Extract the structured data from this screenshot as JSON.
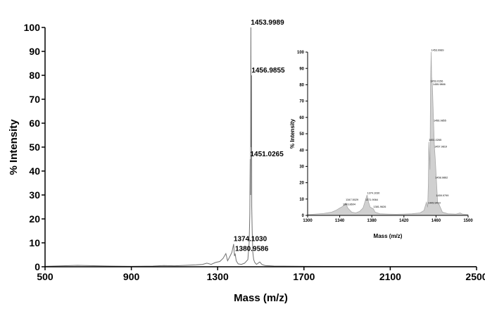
{
  "chart_data": [
    {
      "type": "line",
      "title": "",
      "xlabel": "Mass (m/z)",
      "ylabel": "% Intensity",
      "xlim": [
        500,
        2500
      ],
      "ylim": [
        0,
        100
      ],
      "x_ticks": [
        500,
        900,
        1300,
        1700,
        2100,
        2500
      ],
      "y_ticks": [
        0,
        10,
        20,
        30,
        40,
        50,
        60,
        70,
        80,
        90,
        100
      ],
      "series": [
        {
          "values": [
            [
              500,
              0.2
            ],
            [
              650,
              0.6
            ],
            [
              800,
              0.3
            ],
            [
              900,
              0.2
            ],
            [
              1000,
              0.3
            ],
            [
              1050,
              0.5
            ],
            [
              1100,
              0.4
            ],
            [
              1150,
              0.6
            ],
            [
              1200,
              0.8
            ],
            [
              1230,
              1.0
            ],
            [
              1250,
              1.5
            ],
            [
              1270,
              1.0
            ],
            [
              1290,
              1.8
            ],
            [
              1310,
              2.2
            ],
            [
              1325,
              3.5
            ],
            [
              1338,
              5.5
            ],
            [
              1346,
              2.5
            ],
            [
              1355,
              4.0
            ],
            [
              1366,
              6.0
            ],
            [
              1374.103,
              9.5
            ],
            [
              1378,
              4.5
            ],
            [
              1380.9586,
              5.5
            ],
            [
              1386,
              2.5
            ],
            [
              1395,
              1.2
            ],
            [
              1410,
              1.0
            ],
            [
              1425,
              1.5
            ],
            [
              1440,
              3.0
            ],
            [
              1446,
              10.0
            ],
            [
              1449,
              22.0
            ],
            [
              1451.0265,
              45.0
            ],
            [
              1452.5,
              30.0
            ],
            [
              1453.9989,
              100.0
            ],
            [
              1455.2,
              50.0
            ],
            [
              1456.9855,
              80.0
            ],
            [
              1458,
              25.0
            ],
            [
              1460,
              15.0
            ],
            [
              1463,
              6.0
            ],
            [
              1467,
              3.0
            ],
            [
              1472,
              1.8
            ],
            [
              1480,
              1.0
            ],
            [
              1495,
              2.0
            ],
            [
              1505,
              1.0
            ],
            [
              1520,
              0.5
            ],
            [
              1560,
              0.3
            ],
            [
              1700,
              0.2
            ],
            [
              1900,
              0.1
            ],
            [
              2100,
              0.1
            ],
            [
              2300,
              0.1
            ],
            [
              2500,
              0.1
            ]
          ]
        }
      ],
      "annotations": [
        {
          "text": "1453.9989",
          "x": 1453.9989,
          "y": 100
        },
        {
          "text": "1456.9855",
          "x": 1456.9855,
          "y": 80
        },
        {
          "text": "1451.0265",
          "x": 1451.0265,
          "y": 45
        },
        {
          "text": "1374.1030",
          "x": 1374.103,
          "y": 9.5
        },
        {
          "text": "1380.9586",
          "x": 1380.9586,
          "y": 5.5
        }
      ]
    },
    {
      "type": "area",
      "title": "",
      "xlabel": "Mass (m/z)",
      "ylabel": "% Intensity",
      "xlim": [
        1300,
        1500
      ],
      "ylim": [
        0,
        100
      ],
      "x_ticks": [
        1300,
        1340,
        1380,
        1420,
        1460,
        1500
      ],
      "y_ticks": [
        0,
        10,
        20,
        30,
        40,
        50,
        60,
        70,
        80,
        90,
        100
      ],
      "series": [
        {
          "values": [
            [
              1300,
              0.5
            ],
            [
              1310,
              0.8
            ],
            [
              1320,
              1.2
            ],
            [
              1330,
              2.0
            ],
            [
              1335,
              3.0
            ],
            [
              1340,
              4.5
            ],
            [
              1343.8,
              5.5
            ],
            [
              1347.5,
              7.5
            ],
            [
              1350,
              4.5
            ],
            [
              1355,
              2.0
            ],
            [
              1360,
              1.5
            ],
            [
              1365,
              2.5
            ],
            [
              1369,
              4.5
            ],
            [
              1371.9,
              9.0
            ],
            [
              1374.1,
              12.5
            ],
            [
              1376,
              8.0
            ],
            [
              1378,
              5.0
            ],
            [
              1381.9,
              4.0
            ],
            [
              1384,
              2.0
            ],
            [
              1390,
              1.0
            ],
            [
              1400,
              0.8
            ],
            [
              1410,
              0.7
            ],
            [
              1420,
              0.8
            ],
            [
              1430,
              1.0
            ],
            [
              1440,
              1.5
            ],
            [
              1445,
              3.0
            ],
            [
              1448,
              8.0
            ],
            [
              1449.6,
              5.0
            ],
            [
              1450.5,
              20.0
            ],
            [
              1451,
              45.0
            ],
            [
              1452.5,
              28.0
            ],
            [
              1453.2,
              81.0
            ],
            [
              1453.9989,
              100.0
            ],
            [
              1454.5,
              85.0
            ],
            [
              1455.5,
              79.0
            ],
            [
              1456.9855,
              57.0
            ],
            [
              1458,
              42.0
            ],
            [
              1459,
              35.0
            ],
            [
              1460,
              26.0
            ],
            [
              1462,
              8.0
            ],
            [
              1464,
              6.5
            ],
            [
              1468,
              2.0
            ],
            [
              1475,
              1.0
            ],
            [
              1485,
              0.8
            ],
            [
              1490,
              1.5
            ],
            [
              1493,
              0.8
            ],
            [
              1500,
              0.5
            ]
          ]
        }
      ],
      "annotations": [
        {
          "text": "1453.9989",
          "x": 1453.9989,
          "y": 100
        },
        {
          "text": "1453.0156",
          "x": 1453.0156,
          "y": 81
        },
        {
          "text": "1455.9866",
          "x": 1455.9866,
          "y": 79
        },
        {
          "text": "1456.9855",
          "x": 1456.9855,
          "y": 57
        },
        {
          "text": "1451.0265",
          "x": 1451.0265,
          "y": 45
        },
        {
          "text": "1457.9819",
          "x": 1457.9819,
          "y": 41
        },
        {
          "text": "1458.9862",
          "x": 1458.9862,
          "y": 22
        },
        {
          "text": "1459.9799",
          "x": 1459.9799,
          "y": 11
        },
        {
          "text": "1449.9410",
          "x": 1449.941,
          "y": 6.5
        },
        {
          "text": "1374.1030",
          "x": 1374.103,
          "y": 12.5
        },
        {
          "text": "1371.9064",
          "x": 1371.9064,
          "y": 8.5
        },
        {
          "text": "1381.9626",
          "x": 1381.9626,
          "y": 4
        },
        {
          "text": "1347.5029",
          "x": 1347.5029,
          "y": 8.5
        },
        {
          "text": "1343.8604",
          "x": 1343.8604,
          "y": 5.5
        }
      ]
    }
  ]
}
